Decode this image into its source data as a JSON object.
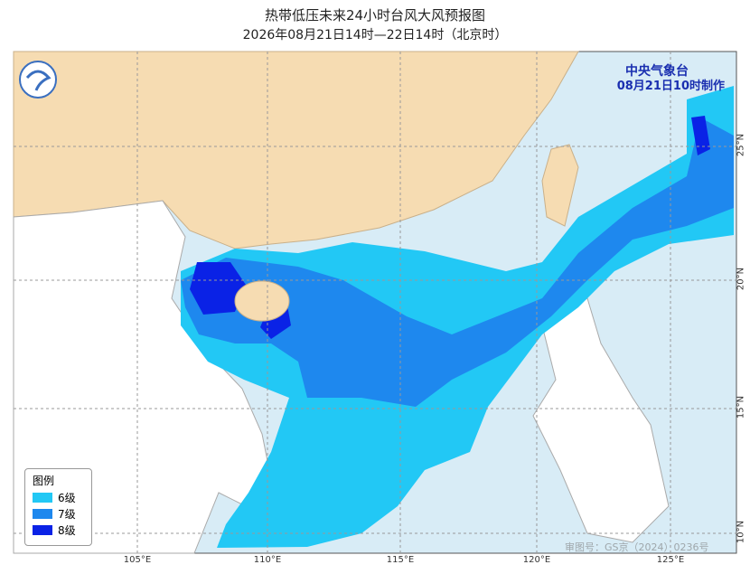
{
  "header": {
    "title": "热带低压未来24小时台风大风预报图",
    "subtitle": "2026年08月21日14时—22日14时（北京时）"
  },
  "agency": {
    "name": "中央气象台",
    "issued": "08月21日10时制作"
  },
  "legend": {
    "title": "图例",
    "items": [
      {
        "label": "6级",
        "color": "#22c8f5"
      },
      {
        "label": "7级",
        "color": "#1e88ee"
      },
      {
        "label": "8级",
        "color": "#0a22e6"
      }
    ]
  },
  "axes": {
    "lon": [
      "105°E",
      "110°E",
      "115°E",
      "120°E",
      "125°E"
    ],
    "lat": [
      "25°N",
      "20°N",
      "15°N",
      "10°N"
    ]
  },
  "watermark": "审图号：GS京（2024）0236号"
}
